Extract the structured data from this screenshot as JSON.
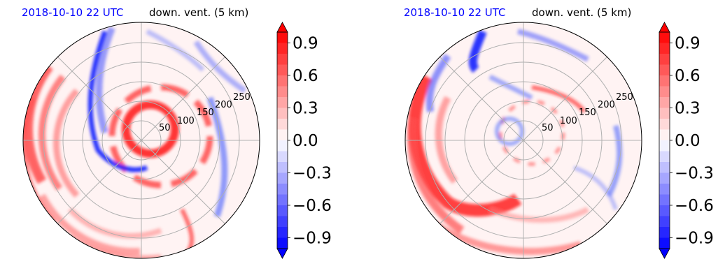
{
  "chart_data": [
    {
      "type": "heatmap",
      "projection": "polar",
      "title_left": "2018-10-10 22 UTC",
      "title_right": "down. vent. (5 km)",
      "radial_ticks": [
        "50",
        "100",
        "150",
        "200",
        "250"
      ],
      "rlim": [
        0,
        300
      ],
      "grid": true,
      "colormap": "bwr",
      "clim": [
        -1.0,
        1.0
      ],
      "colorbar_ticks": [
        "0.9",
        "0.6",
        "0.3",
        "0.0",
        "−0.3",
        "−0.6",
        "−0.9"
      ],
      "colorbar_extend": "both"
    },
    {
      "type": "heatmap",
      "projection": "polar",
      "title_left": "2018-10-10 22 UTC",
      "title_right": "down. vent. (5 km)",
      "radial_ticks": [
        "50",
        "100",
        "150",
        "200",
        "250"
      ],
      "rlim": [
        0,
        300
      ],
      "grid": true,
      "colormap": "bwr",
      "clim": [
        -1.0,
        1.0
      ],
      "colorbar_ticks": [
        "0.9",
        "0.6",
        "0.3",
        "0.0",
        "−0.3",
        "−0.6",
        "−0.9"
      ],
      "colorbar_extend": "both"
    }
  ],
  "colors": {
    "positive": "#ff0000",
    "negative": "#0000ff",
    "neutral": "#ffffff",
    "title_accent": "#0000ff"
  }
}
